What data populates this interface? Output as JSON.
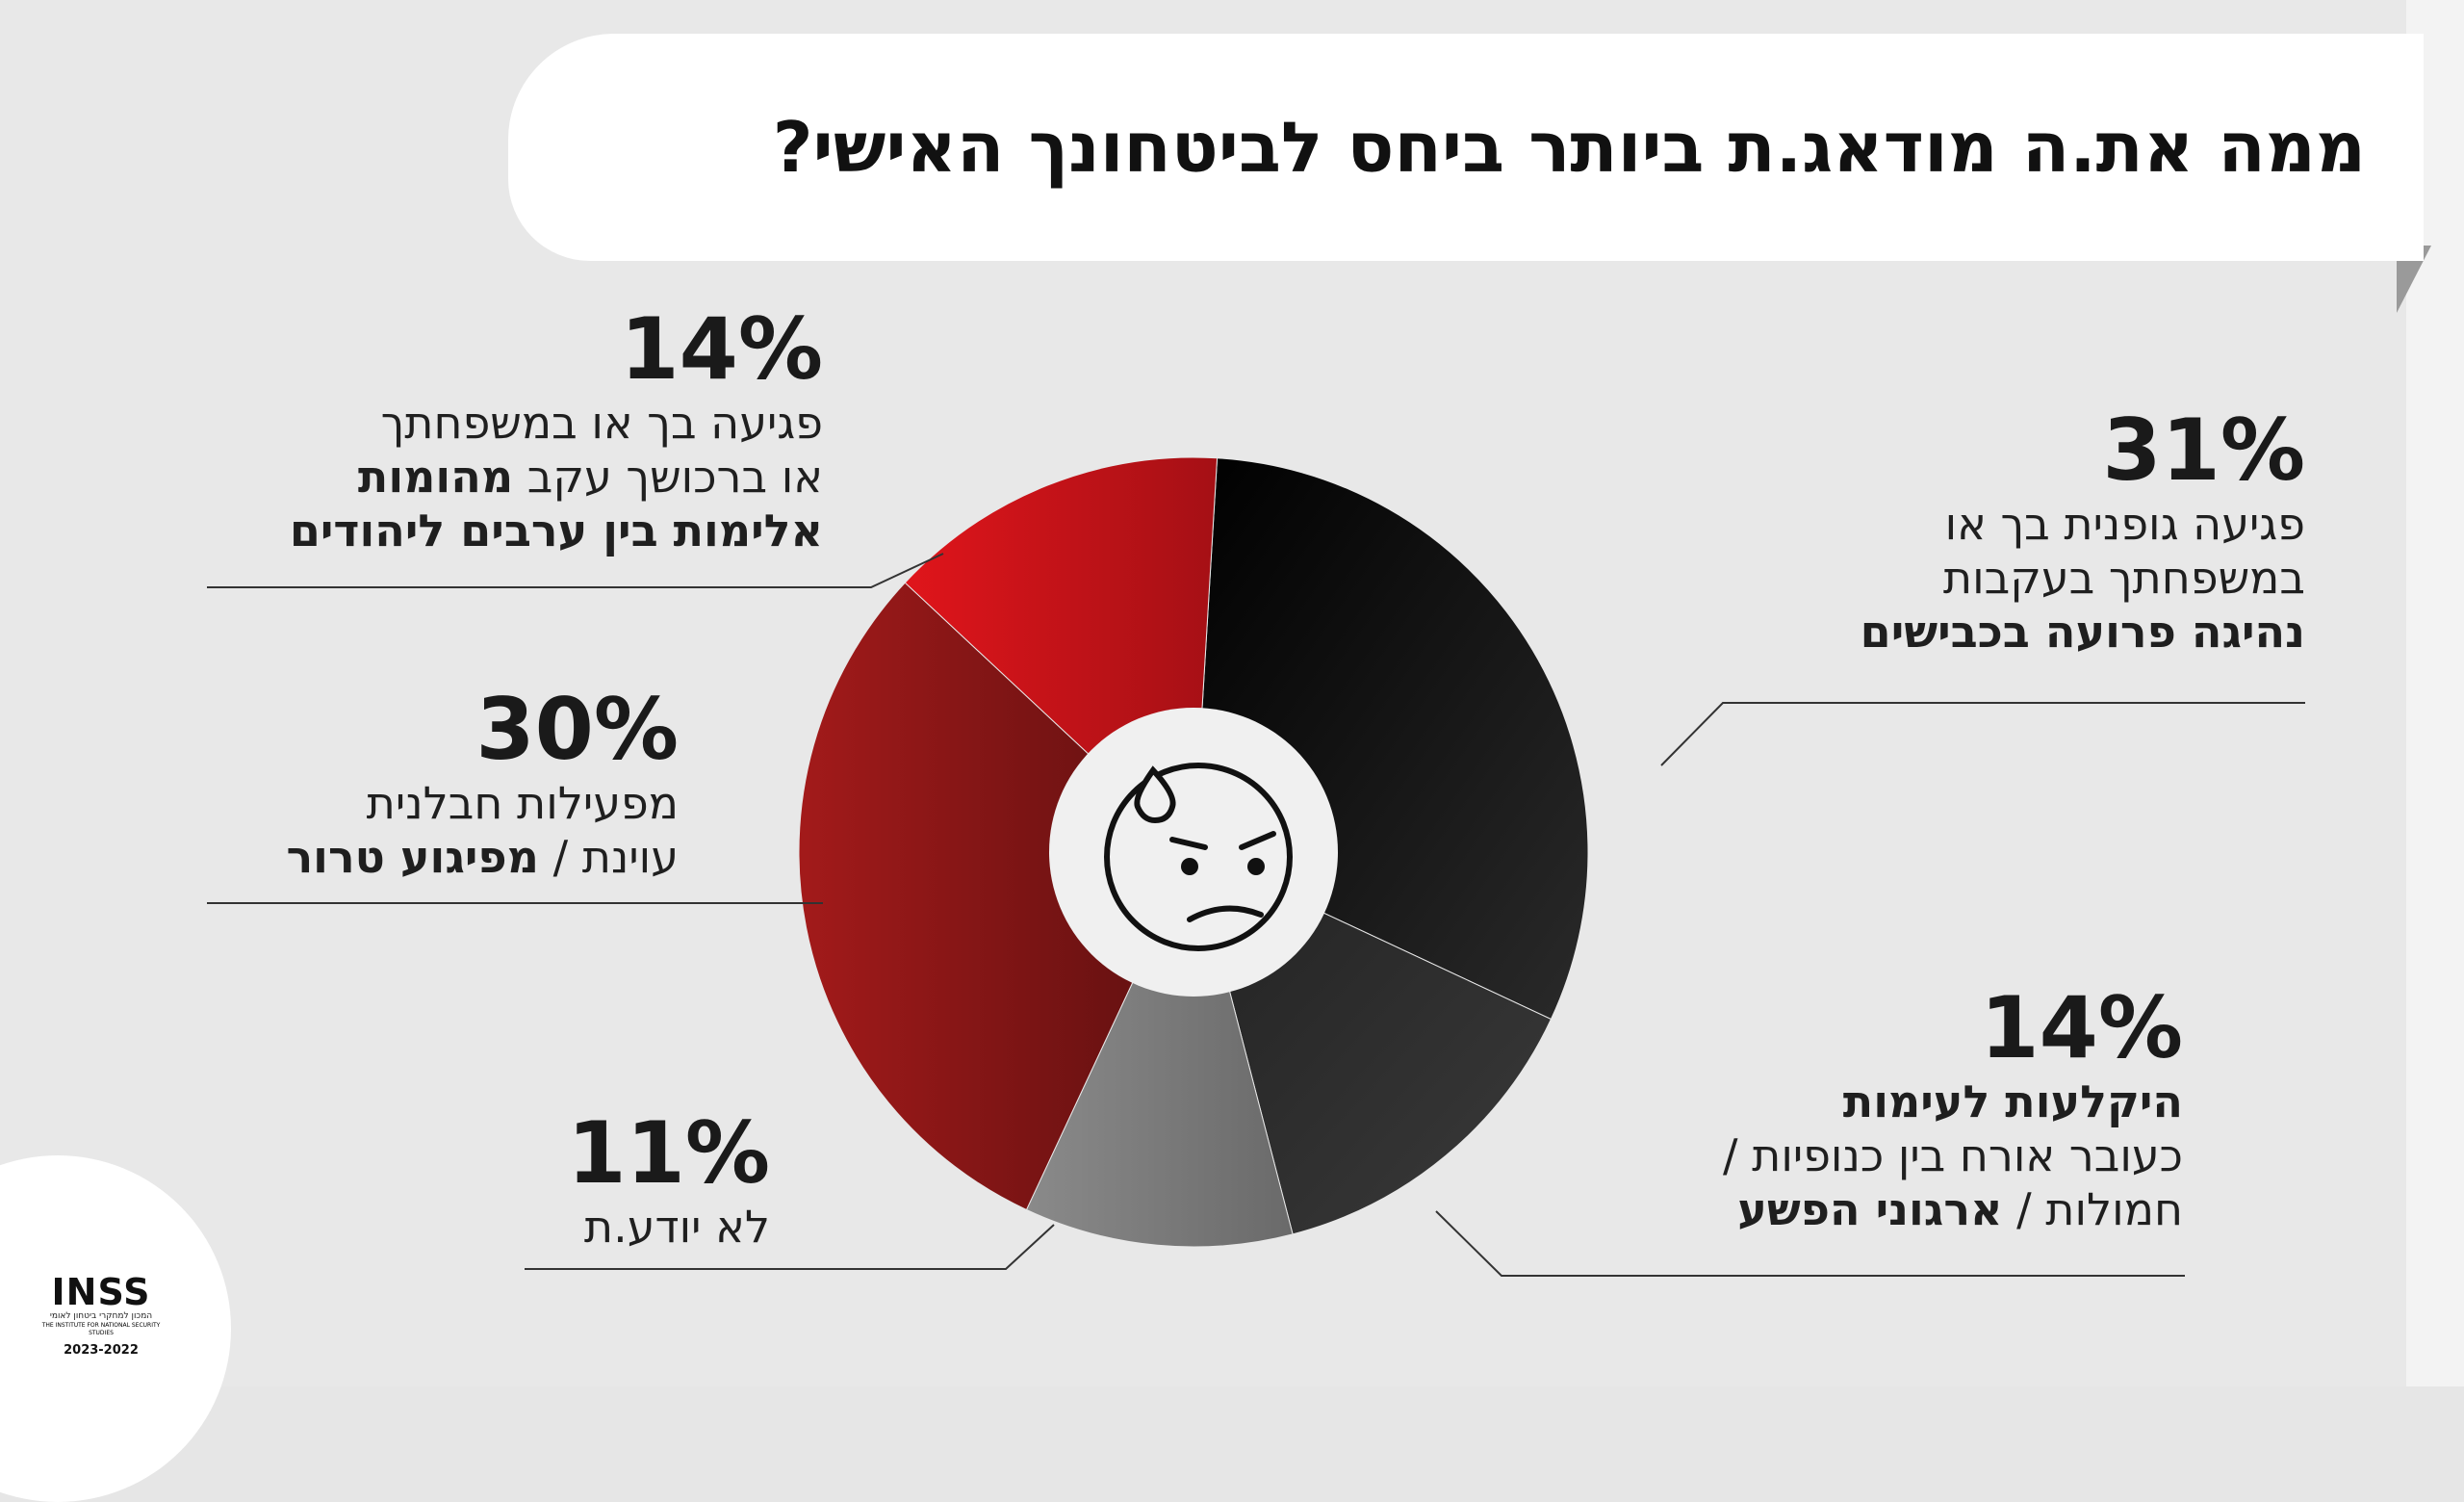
{
  "title": "ממה את.ה מודאג.ת ביותר ביחס לביטחונך האישי?",
  "colors": {
    "black": "#1a1a1a",
    "dark_gray": "#2d2d2d",
    "gray": "#7a7a7a",
    "dark_red": "#7a1414",
    "red": "#c8141a"
  },
  "chart_data": {
    "type": "pie",
    "title": "ממה את.ה מודאג.ת ביותר ביחס לביטחונך האישי?",
    "donut": true,
    "slices": [
      {
        "label_pct": "31%",
        "value": 31,
        "color": "#151515",
        "text_plain": "פגיעה גופנית בך או במשפחתך בעקבות",
        "text_bold": "נהיגה פרועה בכבישים"
      },
      {
        "label_pct": "14%",
        "value": 14,
        "color": "#2d2d2d",
        "text_bold": "היקלעות לעימות",
        "text_plain": "כעובר אורח בין כנופיות / חמולות /",
        "text_bold2": "ארגוני הפשע"
      },
      {
        "label_pct": "11%",
        "value": 11,
        "color": "#7a7a7a",
        "text_plain": "לא יודע.ת"
      },
      {
        "label_pct": "30%",
        "value": 30,
        "color": "#8a1616",
        "text_plain": "מפעילות חבלנית עוינת /",
        "text_bold": "מפיגוע טרור"
      },
      {
        "label_pct": "14%",
        "value": 14,
        "color": "#c8141a",
        "text_plain": "פגיעה בך או במשפחתך או ברכושך עקב",
        "text_bold": "מהומות אלימות בין ערבים ליהודים"
      }
    ]
  },
  "labels": {
    "l31": {
      "pct": "31%",
      "line1": "פגיעה גופנית בך או",
      "line2": "במשפחתך בעקבות",
      "line3": "נהיגה פרועה בכבישים"
    },
    "l14b": {
      "pct": "14%",
      "line1": "היקלעות לעימות",
      "line2": "כעובר אורח בין כנופיות /",
      "line3a": "חמולות / ",
      "line3b": "ארגוני הפשע"
    },
    "l11": {
      "pct": "11%",
      "line1": "לא יודע.ת"
    },
    "l30": {
      "pct": "30%",
      "line1": "מפעילות חבלנית",
      "line2a": "עוינת / ",
      "line2b": "מפיגוע טרור"
    },
    "l14r": {
      "pct": "14%",
      "line1": "פגיעה בך או במשפחתך",
      "line2a": "או ברכושך עקב ",
      "line2b": "מהומות",
      "line3": "אלימות בין ערבים ליהודים"
    }
  },
  "logo": {
    "name": "INSS",
    "subtitle_he": "המכון למחקרי ביטחון לאומי",
    "subtitle_en": "THE INSTITUTE FOR NATIONAL SECURITY STUDIES",
    "year": "2023-2022"
  }
}
